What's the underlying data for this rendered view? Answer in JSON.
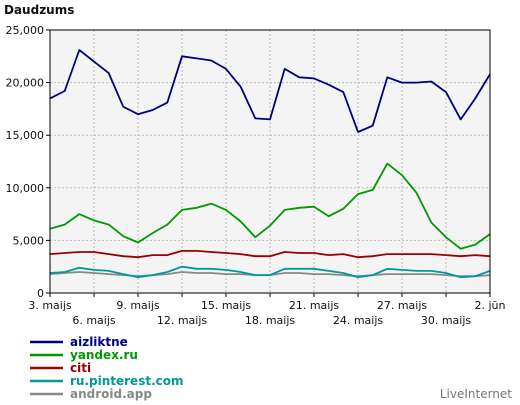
{
  "chart_data": {
    "type": "line",
    "title": "",
    "ylabel": "Daudzums",
    "xlabel": "",
    "ylim": [
      0,
      25000
    ],
    "y_ticks": [
      "0",
      "5,000",
      "10,000",
      "15,000",
      "20,000",
      "25,000"
    ],
    "y_tick_values": [
      0,
      5000,
      10000,
      15000,
      20000,
      25000
    ],
    "x_tick_labels": [
      {
        "label": "3. maijs",
        "index": 0,
        "row": 1
      },
      {
        "label": "6. maijs",
        "index": 3,
        "row": 2
      },
      {
        "label": "9. maijs",
        "index": 6,
        "row": 1
      },
      {
        "label": "12. maijs",
        "index": 9,
        "row": 2
      },
      {
        "label": "15. maijs",
        "index": 12,
        "row": 1
      },
      {
        "label": "18. maijs",
        "index": 15,
        "row": 2
      },
      {
        "label": "21. maijs",
        "index": 18,
        "row": 1
      },
      {
        "label": "24. maijs",
        "index": 21,
        "row": 2
      },
      {
        "label": "27. maijs",
        "index": 24,
        "row": 1
      },
      {
        "label": "30. maijs",
        "index": 27,
        "row": 2
      },
      {
        "label": "2. jūn",
        "index": 30,
        "row": 1
      }
    ],
    "grid": true,
    "legend_position": "bottom-left",
    "series": [
      {
        "name": "aizliktne",
        "color": "#00007f",
        "values": [
          18500,
          19200,
          23100,
          22000,
          20900,
          17700,
          17000,
          17400,
          18100,
          22500,
          22300,
          22100,
          21300,
          19600,
          16600,
          16500,
          21300,
          20500,
          20400,
          19800,
          19100,
          15300,
          15900,
          20500,
          20000,
          20000,
          20100,
          19100,
          16500,
          18500,
          20800
        ]
      },
      {
        "name": "yandex.ru",
        "color": "#009900",
        "values": [
          6100,
          6500,
          7500,
          6900,
          6500,
          5400,
          4800,
          5700,
          6500,
          7900,
          8100,
          8500,
          7900,
          6800,
          5300,
          6400,
          7900,
          8100,
          8200,
          7300,
          8000,
          9400,
          9800,
          12300,
          11200,
          9500,
          6700,
          5300,
          4200,
          4600,
          5600
        ]
      },
      {
        "name": "citi",
        "color": "#990000",
        "values": [
          3700,
          3800,
          3900,
          3900,
          3700,
          3500,
          3400,
          3600,
          3600,
          4000,
          4000,
          3900,
          3800,
          3700,
          3500,
          3500,
          3900,
          3800,
          3800,
          3600,
          3700,
          3400,
          3500,
          3700,
          3700,
          3700,
          3700,
          3600,
          3500,
          3600,
          3500
        ]
      },
      {
        "name": "ru.pinterest.com",
        "color": "#009999",
        "values": [
          1900,
          2000,
          2400,
          2200,
          2100,
          1800,
          1500,
          1700,
          2000,
          2500,
          2300,
          2300,
          2200,
          2000,
          1700,
          1700,
          2300,
          2300,
          2300,
          2100,
          1900,
          1500,
          1700,
          2300,
          2200,
          2100,
          2100,
          1900,
          1500,
          1600,
          2100
        ]
      },
      {
        "name": "android.app",
        "color": "#888888",
        "values": [
          1800,
          1900,
          2000,
          1900,
          1800,
          1700,
          1600,
          1700,
          1800,
          2000,
          1900,
          1900,
          1800,
          1800,
          1700,
          1700,
          1900,
          1900,
          1800,
          1800,
          1700,
          1600,
          1700,
          1800,
          1800,
          1800,
          1800,
          1700,
          1600,
          1600,
          1700
        ]
      }
    ]
  },
  "brand": "LiveInternet"
}
